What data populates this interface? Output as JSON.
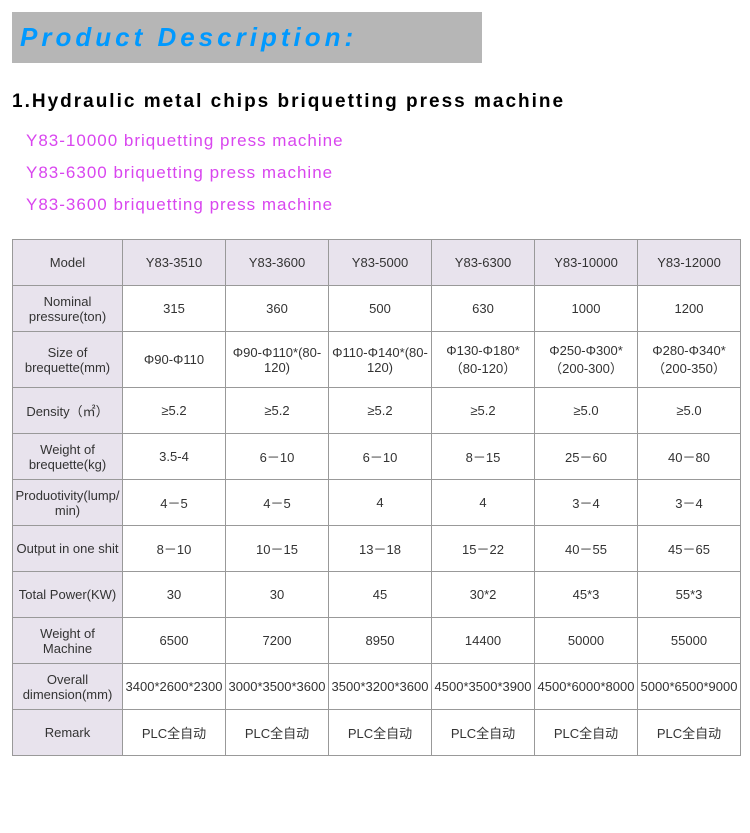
{
  "header": {
    "title": "Product Description:"
  },
  "section": {
    "title": "1.Hydraulic metal chips briquetting press machine"
  },
  "links": [
    "Y83-10000 briquetting press machine",
    "Y83-6300 briquetting press machine",
    "Y83-3600 briquetting press machine"
  ],
  "table": {
    "head_label": "Model",
    "columns": [
      "Y83-3510",
      "Y83-3600",
      "Y83-5000",
      "Y83-6300",
      "Y83-10000",
      "Y83-12000"
    ],
    "rows": [
      {
        "label": "Nominal pressure(ton)",
        "cells": [
          "315",
          "360",
          "500",
          "630",
          "1000",
          "1200"
        ]
      },
      {
        "label": "Size of brequette(mm)",
        "cells": [
          "Φ90-Φ110",
          "Φ90-Φ110*(80-120)",
          "Φ110-Φ140*(80-120)",
          "Φ130-Φ180*（80-120）",
          "Φ250-Φ300*（200-300）",
          "Φ280-Φ340*（200-350）"
        ]
      },
      {
        "label": "Density（㎡）",
        "cells": [
          "≥5.2",
          "≥5.2",
          "≥5.2",
          "≥5.2",
          "≥5.0",
          "≥5.0"
        ]
      },
      {
        "label": "Weight of brequette(kg)",
        "cells": [
          "3.5-4",
          "6－10",
          "6－10",
          "8－15",
          "25－60",
          "40－80"
        ]
      },
      {
        "label": "Produotivity(lump/min)",
        "cells": [
          "4－5",
          "4－5",
          "4",
          "4",
          "3－4",
          "3－4"
        ]
      },
      {
        "label": "Output in one shit",
        "cells": [
          "8－10",
          "10－15",
          "13－18",
          "15－22",
          "40－55",
          "45－65"
        ]
      },
      {
        "label": "Total Power(KW)",
        "cells": [
          "30",
          "30",
          "45",
          "30*2",
          "45*3",
          "55*3"
        ]
      },
      {
        "label": "Weight of Machine",
        "cells": [
          "6500",
          "7200",
          "8950",
          "14400",
          "50000",
          "55000"
        ]
      },
      {
        "label": "Overall dimension(mm)",
        "cells": [
          "3400*2600*2300",
          "3000*3500*3600",
          "3500*3200*3600",
          "4500*3500*3900",
          "4500*6000*8000",
          "5000*6500*9000"
        ]
      },
      {
        "label": "Remark",
        "cells": [
          "PLC全自动",
          "PLC全自动",
          "PLC全自动",
          "PLC全自动",
          "PLC全自动",
          "PLC全自动"
        ]
      }
    ]
  },
  "styling": {
    "header_bg": "#b6b6b6",
    "header_text_color": "#0099ff",
    "link_color": "#d946ef",
    "table_header_bg": "#e8e3ed",
    "border_color": "#999999",
    "text_color": "#333333",
    "page_bg": "#ffffff"
  }
}
